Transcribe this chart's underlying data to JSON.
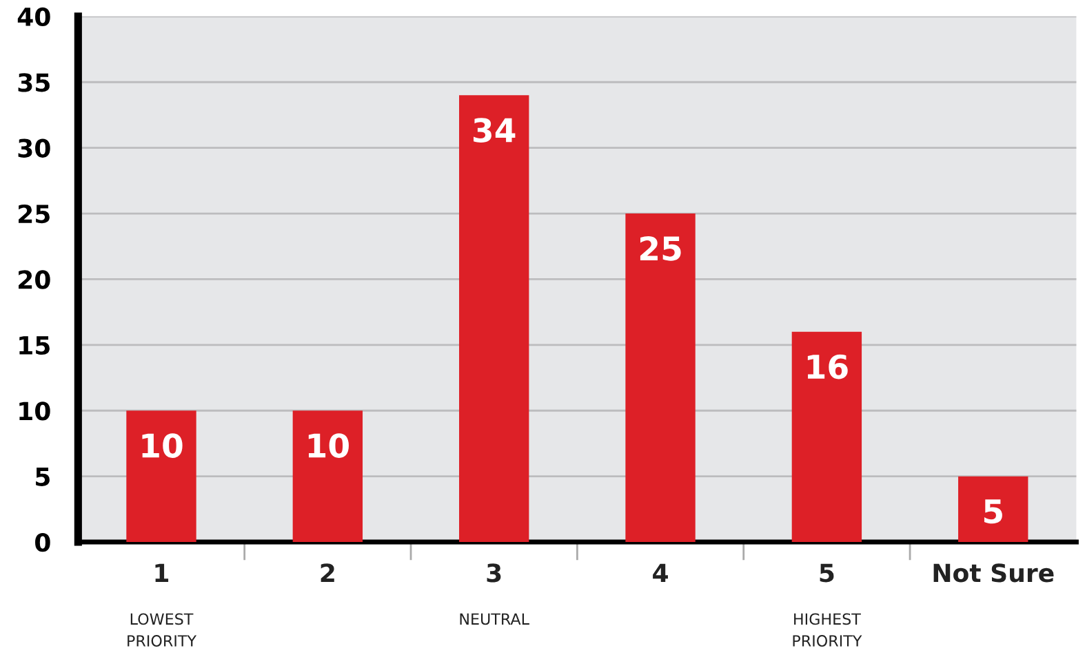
{
  "chart_data": {
    "type": "bar",
    "categories": [
      "1\nLOWEST\nPRIORITY",
      "2",
      "3\nNEUTRAL",
      "4",
      "5\nHIGHEST\nPRIORITY",
      "Not Sure"
    ],
    "values": [
      10,
      10,
      34,
      25,
      16,
      5
    ],
    "color": "#dd2027",
    "ylim": [
      0,
      40
    ],
    "yticks": [
      0,
      5,
      10,
      15,
      20,
      25,
      30,
      35,
      40
    ],
    "grid": "y",
    "data_labels": true,
    "legend": false
  }
}
